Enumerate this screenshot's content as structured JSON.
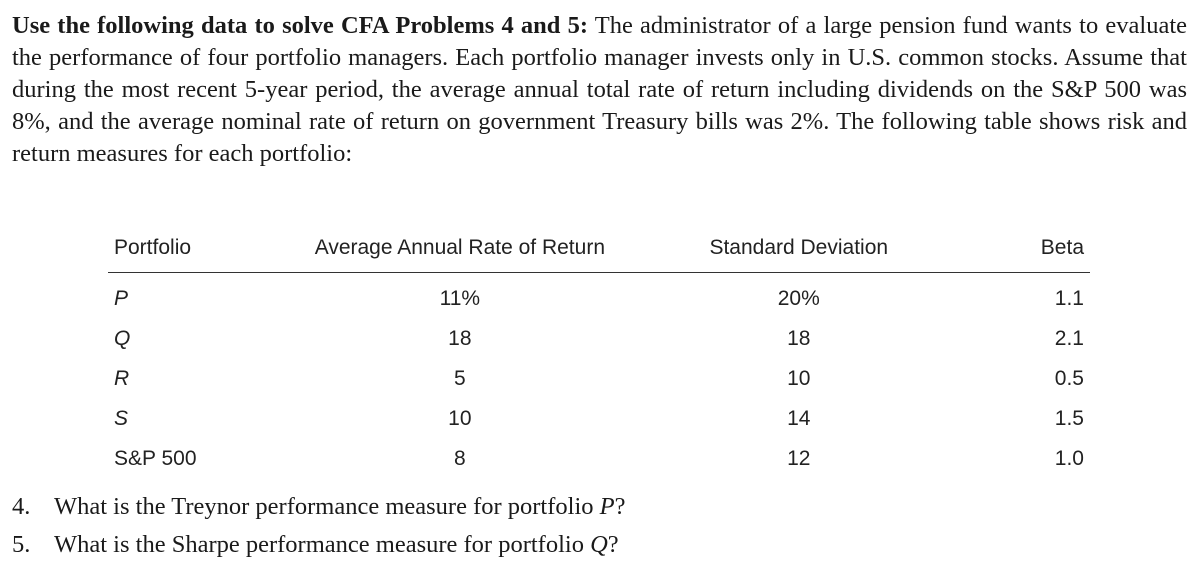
{
  "intro": {
    "lead": "Use the following data to solve CFA Problems 4 and 5:",
    "body": " The administrator of a large pension fund wants to evaluate the performance of four portfolio managers. Each portfolio manager invests only in U.S. common stocks. Assume that during the most recent 5-year period, the average annual total rate of return including dividends on the S&P 500 was 8%, and the average nominal rate of return on government Treasury bills was 2%. The following table shows risk and return measures for each portfolio:"
  },
  "table": {
    "headers": {
      "portfolio": "Portfolio",
      "return": "Average Annual Rate of Return",
      "std": "Standard Deviation",
      "beta": "Beta"
    },
    "rows": [
      {
        "portfolio": "P",
        "return": "11%",
        "std": "20%",
        "beta": "1.1"
      },
      {
        "portfolio": "Q",
        "return": "18",
        "std": "18",
        "beta": "2.1"
      },
      {
        "portfolio": "R",
        "return": "5",
        "std": "10",
        "beta": "0.5"
      },
      {
        "portfolio": "S",
        "return": "10",
        "std": "14",
        "beta": "1.5"
      },
      {
        "portfolio": "S&P 500",
        "return": "8",
        "std": "12",
        "beta": "1.0"
      }
    ]
  },
  "questions": [
    {
      "number": "4.",
      "text": "What is the Treynor performance measure for portfolio ",
      "target": "P",
      "end": "?"
    },
    {
      "number": "5.",
      "text": "What is the Sharpe performance measure for portfolio ",
      "target": "Q",
      "end": "?"
    }
  ]
}
